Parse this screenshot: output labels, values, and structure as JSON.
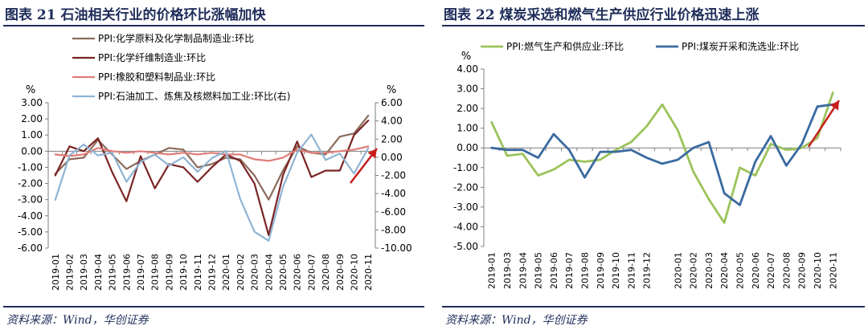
{
  "figures": [
    {
      "title": "图表 21    石油相关行业的价格环比涨幅加快",
      "source": "资料来源：Wind，华创证券"
    },
    {
      "title": "图表 22    煤炭采选和燃气生产供应行业价格迅速上涨",
      "source": "资料来源：Wind，华创证券"
    }
  ],
  "chart_data": [
    {
      "type": "line",
      "categories": [
        "2019-01",
        "2019-02",
        "2019-03",
        "2019-04",
        "2019-05",
        "2019-06",
        "2019-07",
        "2019-08",
        "2019-09",
        "2019-10",
        "2019-11",
        "2019-12",
        "2020-01",
        "2020-02",
        "2020-03",
        "2020-04",
        "2020-05",
        "2020-06",
        "2020-07",
        "2020-08",
        "2020-09",
        "2020-10",
        "2020-11"
      ],
      "tick_labels": [
        "2019-01",
        "2019-02",
        "2019-03",
        "2019-04",
        "2019-05",
        "2019-06",
        "2019-07",
        "2019-08",
        "2019-09",
        "2019-10",
        "2019-11",
        "2019-12",
        "2020-01",
        "2020-02",
        "2020-03",
        "2020-04",
        "2020-05",
        "2020-06",
        "2020-07",
        "2020-08",
        "2020-09",
        "2020-10",
        "2020-11"
      ],
      "ylabel": "%",
      "y2label": "%",
      "ylim": [
        -6,
        3
      ],
      "y2lim": [
        -10,
        6
      ],
      "yticks": [
        "3.00",
        "2.00",
        "1.00",
        "0.00",
        "-1.00",
        "-2.00",
        "-3.00",
        "-4.00",
        "-5.00",
        "-6.00"
      ],
      "y2ticks": [
        "6.00",
        "4.00",
        "2.00",
        "0.00",
        "-2.00",
        "-4.00",
        "-6.00",
        "-8.00",
        "-10.00"
      ],
      "legend_position": "top",
      "grid": false,
      "series": [
        {
          "name": "PPI:化学原料及化学制品制造业:环比",
          "color": "#8b6a5c",
          "axis": "left",
          "values": [
            -1.4,
            -0.5,
            -0.4,
            0.7,
            -0.2,
            -1.1,
            -0.6,
            -0.2,
            0.2,
            0.1,
            -1.0,
            -0.8,
            -0.4,
            -0.5,
            -1.5,
            -3.0,
            -1.2,
            0.3,
            -0.1,
            -0.2,
            0.9,
            1.1,
            2.2
          ]
        },
        {
          "name": "PPI:化学纤维制造业:环比",
          "color": "#7a2424",
          "axis": "left",
          "values": [
            -1.5,
            0.3,
            0.0,
            0.8,
            -1.3,
            -3.1,
            -0.3,
            -2.3,
            -0.8,
            -1.0,
            -1.9,
            -1.0,
            -0.2,
            -0.6,
            -2.0,
            -5.2,
            -1.5,
            0.6,
            -1.6,
            -1.2,
            -1.2,
            1.0,
            1.9
          ]
        },
        {
          "name": "PPI:橡胶和塑料制品业:环比",
          "color": "#e07c77",
          "axis": "left",
          "values": [
            -0.2,
            -0.3,
            -0.2,
            0.2,
            0.0,
            -0.1,
            0.0,
            -0.1,
            -0.2,
            -0.1,
            -0.2,
            -0.1,
            -0.2,
            -0.2,
            -0.5,
            -0.6,
            -0.4,
            0.1,
            -0.1,
            -0.1,
            0.0,
            0.1,
            0.3
          ]
        },
        {
          "name": "PPI:石油加工、炼焦及核燃料加工业:环比(右)",
          "color": "#8fb4d3",
          "axis": "right",
          "values": [
            -4.7,
            0.2,
            1.4,
            0.2,
            0.5,
            -2.7,
            -0.5,
            0.3,
            -0.9,
            0.0,
            -1.6,
            -0.1,
            0.7,
            -4.6,
            -8.2,
            -9.2,
            -3.3,
            0.5,
            2.5,
            -0.3,
            0.4,
            -1.8,
            1.0
          ]
        }
      ],
      "annotation_arrow_color": "#c81e1e"
    },
    {
      "type": "line",
      "categories": [
        "2019-01",
        "2019-02",
        "2019-03",
        "2019-04",
        "2019-05",
        "2019-06",
        "2019-07",
        "2019-08",
        "2019-09",
        "2019-10",
        "2019-11",
        "2019-12",
        "2020-01",
        "2020-02",
        "2020-03",
        "2020-04",
        "2020-05",
        "2020-06",
        "2020-07",
        "2020-08",
        "2020-09",
        "2020-10",
        "2020-11"
      ],
      "tick_labels": [
        "2019-01",
        "2019-03",
        "2019-04",
        "2019-05",
        "2019-06",
        "2019-07",
        "2019-08",
        "2019-09",
        "2019-10",
        "2019-11",
        "2019-12",
        "2020-01",
        "2020-02",
        "2020-03",
        "2020-04",
        "2020-05",
        "2020-06",
        "2020-07",
        "2020-08",
        "2020-09",
        "2020-10",
        "2020-11"
      ],
      "ylabel": "%",
      "ylim": [
        -5,
        4
      ],
      "yticks": [
        "4.00",
        "3.00",
        "2.00",
        "1.00",
        "0.00",
        "-1.00",
        "-2.00",
        "-3.00",
        "-4.00",
        "-5.00"
      ],
      "legend_position": "top",
      "grid": false,
      "series": [
        {
          "name": "PPI:燃气生产和供应业:环比",
          "color": "#9bc35a",
          "axis": "left",
          "values": [
            1.3,
            -0.4,
            -0.3,
            -1.4,
            -1.1,
            -0.6,
            -0.7,
            -0.6,
            -0.1,
            0.3,
            1.1,
            2.2,
            0.9,
            -1.2,
            -2.6,
            -3.8,
            -1.0,
            -1.4,
            0.2,
            -0.1,
            0.0,
            0.5,
            2.8
          ]
        },
        {
          "name": "PPI:煤炭开采和洗选业:环比",
          "color": "#3a6a9f",
          "axis": "left",
          "values": [
            0.0,
            -0.1,
            -0.1,
            -0.5,
            0.7,
            -0.1,
            -1.5,
            -0.2,
            -0.2,
            -0.1,
            -0.5,
            -0.8,
            -0.6,
            0.0,
            0.3,
            -2.3,
            -2.9,
            -0.7,
            0.6,
            -0.9,
            0.2,
            2.1,
            2.2
          ]
        }
      ],
      "annotation_arrow_color": "#c81e1e"
    }
  ]
}
